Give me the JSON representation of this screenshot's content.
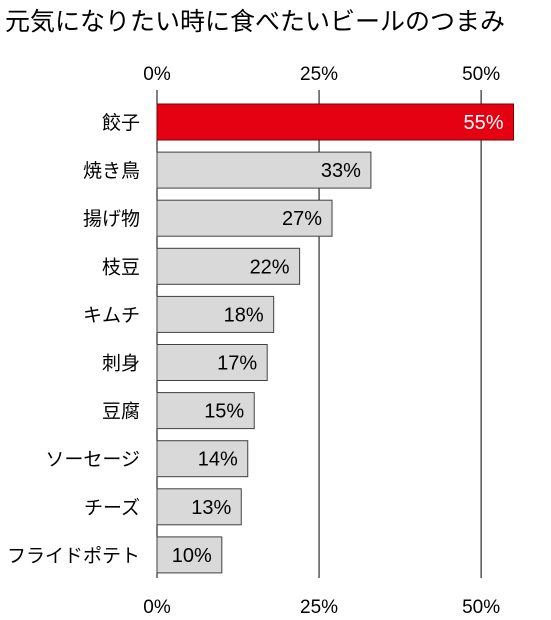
{
  "chart_data": {
    "type": "bar",
    "orientation": "horizontal",
    "title": "元気になりたい時に食べたいビールのつまみ",
    "categories": [
      "餃子",
      "焼き鳥",
      "揚げ物",
      "枝豆",
      "キムチ",
      "刺身",
      "豆腐",
      "ソーセージ",
      "チーズ",
      "フライドポテト"
    ],
    "values": [
      55,
      33,
      27,
      22,
      18,
      17,
      15,
      14,
      13,
      10
    ],
    "data_labels": [
      "55%",
      "33%",
      "27%",
      "22%",
      "18%",
      "17%",
      "15%",
      "14%",
      "13%",
      "10%"
    ],
    "xticks": [
      0,
      25,
      50
    ],
    "xtick_labels": [
      "0%",
      "25%",
      "50%"
    ],
    "xlim": [
      0,
      56
    ],
    "grid": true,
    "tick_labels_position": "top-and-bottom",
    "highlight_index": 0,
    "colors": {
      "highlight": "#e50012",
      "highlight_edge": "#7a0000",
      "highlight_label": "#ffffff",
      "bar": "#d9d9d9",
      "bar_edge": "#404040",
      "label": "#000000",
      "grid": "#000000"
    }
  }
}
